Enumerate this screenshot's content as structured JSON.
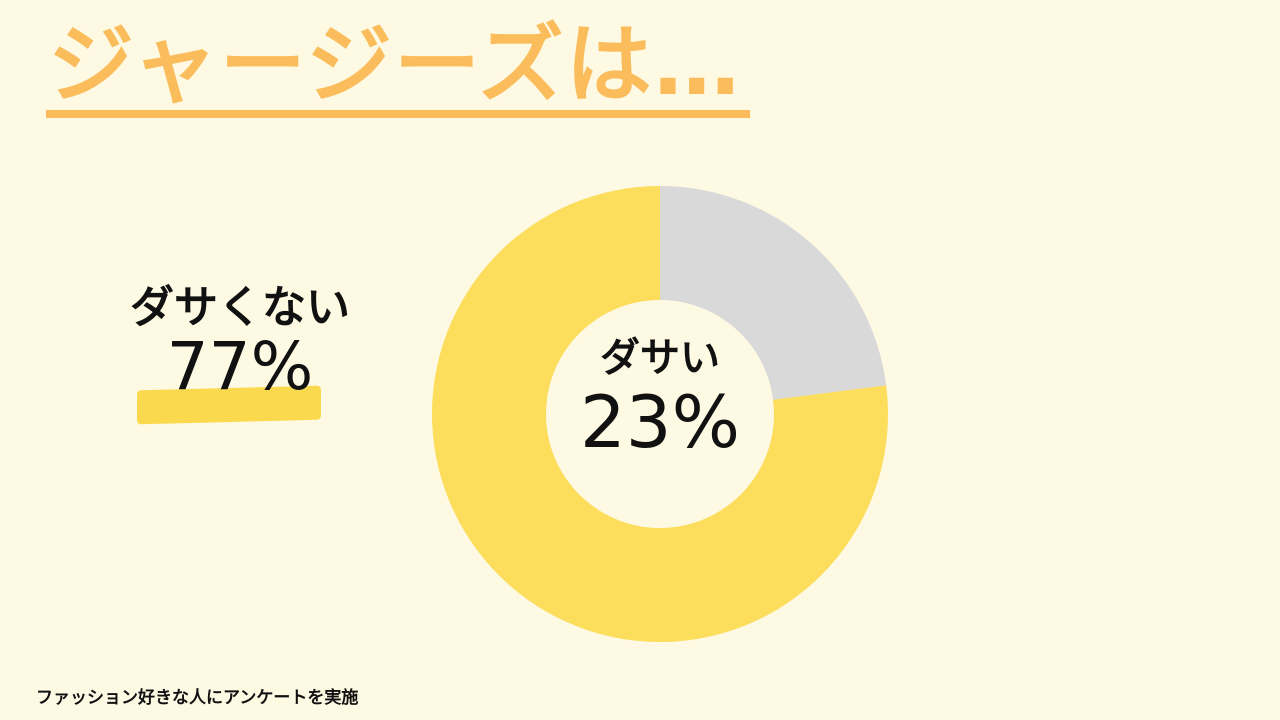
{
  "title": "ジャージーズは…",
  "footnote": "ファッション好きな人にアンケートを実施",
  "labels": {
    "not_dasai": {
      "name": "ダサくない",
      "pct": "77%"
    },
    "dasai": {
      "name": "ダサい",
      "pct": "23%"
    }
  },
  "colors": {
    "title": "#fbbd5c",
    "background": "#fdf9e3",
    "not_dasai": "#fddd5c",
    "dasai": "#d9d9d9"
  },
  "chart_data": {
    "type": "pie",
    "style": "donut",
    "categories": [
      "ダサい",
      "ダサくない"
    ],
    "values": [
      23,
      77
    ]
  }
}
